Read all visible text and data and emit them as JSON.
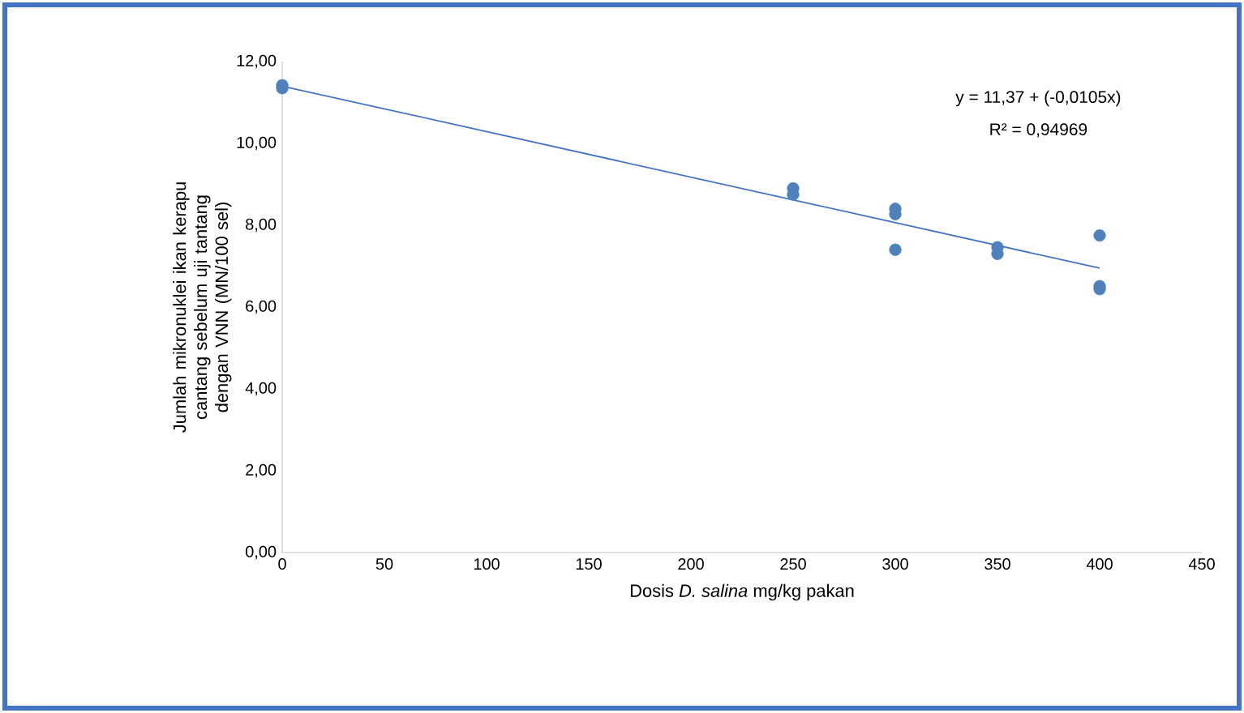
{
  "chart_data": {
    "type": "scatter",
    "xlabel": "Dosis *D. salina* mg/kg pakan",
    "ylabel": "Jumlah mikronuklei ikan kerapu cantang sebelum uji tantang dengan VNN (MN/100 sel)",
    "annotations": [
      "y = 11,37 + (-0,0105x)",
      "R² = 0,94969"
    ],
    "series": [
      {
        "color": "#4f81bd",
        "marker": "circle",
        "x": [
          0,
          0,
          250,
          250,
          300,
          300,
          300,
          350,
          350,
          400,
          400,
          400
        ],
        "values": [
          11.42,
          11.35,
          8.9,
          8.75,
          8.4,
          8.27,
          7.4,
          7.46,
          7.3,
          7.75,
          6.51,
          6.44
        ]
      },
      {
        "type": "line",
        "color": "#4472c4",
        "x": [
          0,
          400
        ],
        "values": [
          11.4,
          6.95
        ]
      }
    ],
    "xlim": [
      0,
      450
    ],
    "xticks": [
      0,
      50,
      100,
      150,
      200,
      250,
      300,
      350,
      400,
      450
    ],
    "ylim": [
      0,
      12
    ],
    "yticks": [
      {
        "value": 0,
        "label": "0,00"
      },
      {
        "value": 2,
        "label": "2,00"
      },
      {
        "value": 4,
        "label": "4,00"
      },
      {
        "value": 6,
        "label": "6,00"
      },
      {
        "value": 8,
        "label": "8,00"
      },
      {
        "value": 10,
        "label": "10,00"
      },
      {
        "value": 12,
        "label": "12,00"
      }
    ],
    "grid": false
  }
}
